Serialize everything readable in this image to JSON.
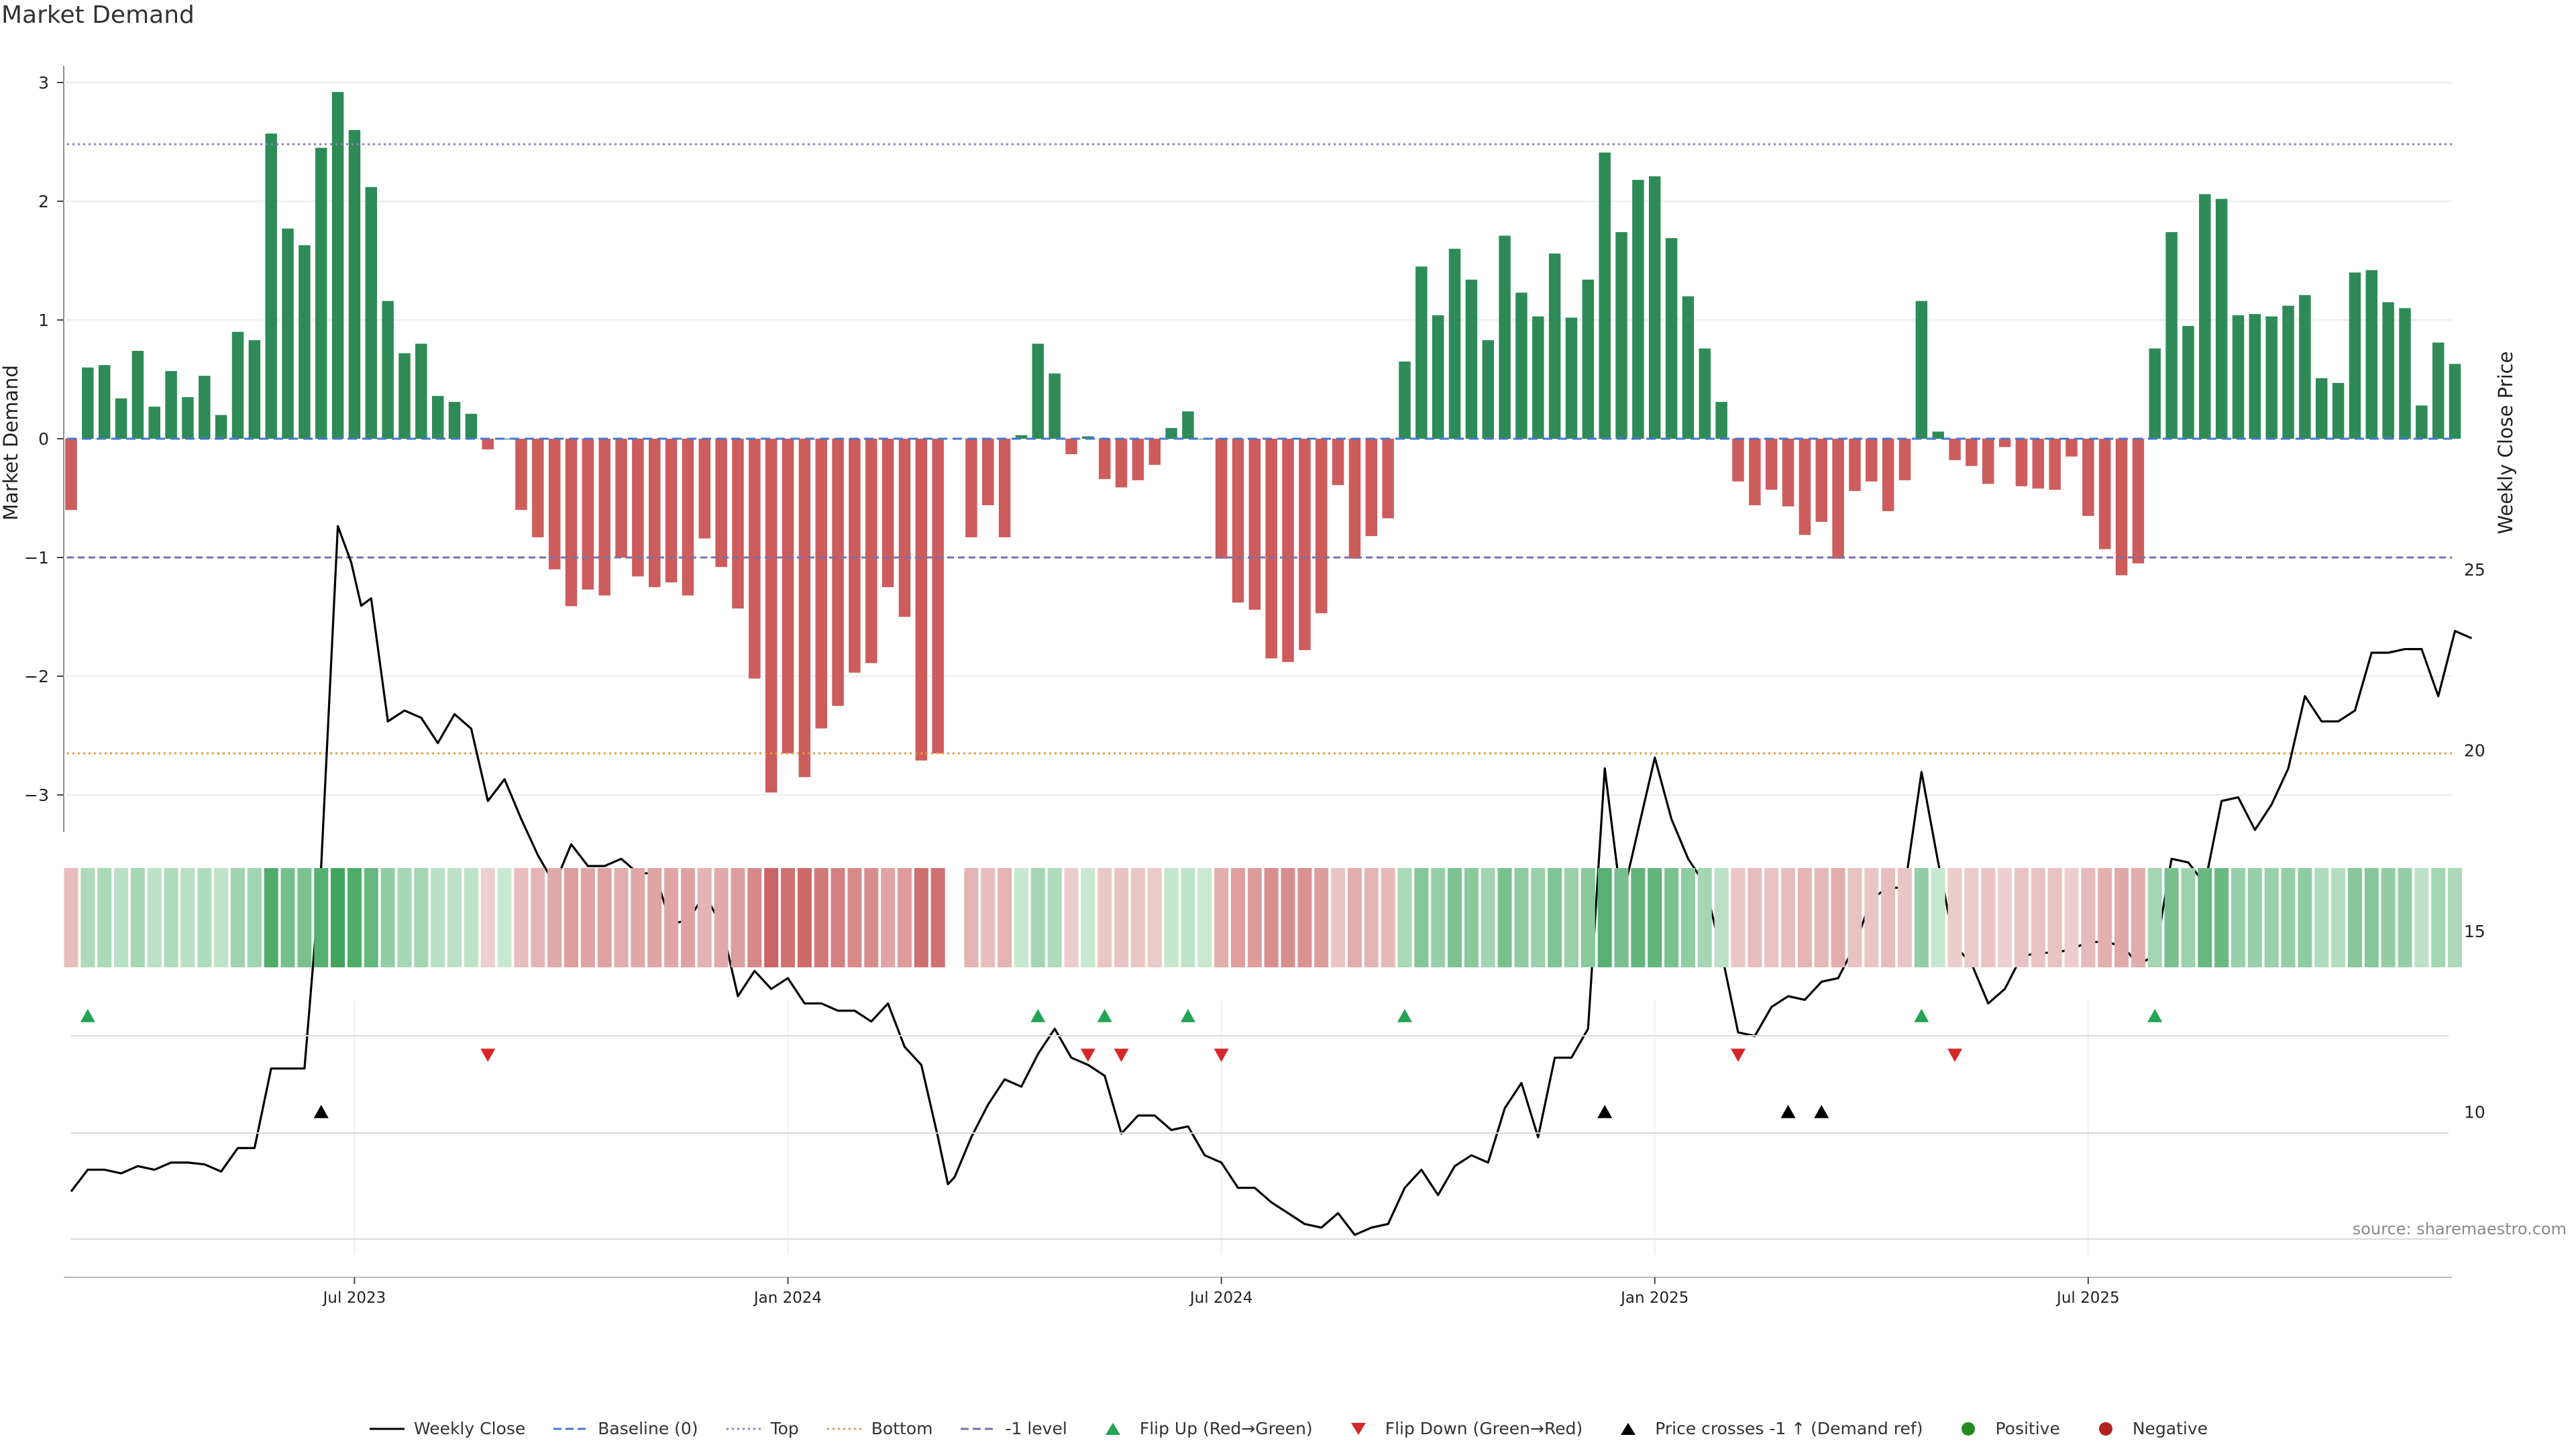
{
  "title": "Market Demand",
  "source": "source: sharemaestro.com",
  "colors": {
    "positive": "#2e8b57",
    "negative": "#cd5c5c",
    "close": "#000000",
    "baseline": "#4477cc",
    "top": "#8a7fb8",
    "bottom": "#e69a3a",
    "level": "#7a6fa8",
    "flip_up": "#22a355",
    "flip_down": "#d62728",
    "cross": "#000000"
  },
  "legend": [
    {
      "label": "Weekly Close",
      "type": "line",
      "color": "#000000"
    },
    {
      "label": "Baseline (0)",
      "type": "dash",
      "color": "#4477cc"
    },
    {
      "label": "Top",
      "type": "dot",
      "color": "#8a7fb8"
    },
    {
      "label": "Bottom",
      "type": "dot",
      "color": "#e69a3a"
    },
    {
      "label": "-1 level",
      "type": "dash",
      "color": "#7a6fa8"
    },
    {
      "label": "Flip Up (Red→Green)",
      "type": "tri-up",
      "color": "#22a355"
    },
    {
      "label": "Flip Down (Green→Red)",
      "type": "tri-down",
      "color": "#d62728"
    },
    {
      "label": "Price crosses -1 ↑ (Demand ref)",
      "type": "tri-up",
      "color": "#000000"
    },
    {
      "label": "Positive",
      "type": "dot-marker",
      "color": "#228b22"
    },
    {
      "label": "Negative",
      "type": "dot-marker",
      "color": "#b22222"
    }
  ],
  "chart_data": {
    "type": "bar",
    "xlabel": "",
    "ylabel": "Market Demand",
    "y2label": "Weekly Close Price",
    "ylim": [
      -3.3,
      3.2
    ],
    "y2lim": [
      6.2,
      27
    ],
    "yticks": [
      -3,
      -2,
      -1,
      0,
      1,
      2,
      3
    ],
    "yticklabels": [
      "−3",
      "−2",
      "−1",
      "0",
      "1",
      "2",
      "3"
    ],
    "y2ticks": [
      10,
      15,
      20,
      25
    ],
    "x_range_weeks": [
      -5,
      138
    ],
    "date_ticks": [
      {
        "label": "Jul 2023",
        "week": 17
      },
      {
        "label": "Jan 2024",
        "week": 43
      },
      {
        "label": "Jul 2024",
        "week": 69
      },
      {
        "label": "Jan 2025",
        "week": 95
      },
      {
        "label": "Jul 2025",
        "week": 121
      }
    ],
    "reference_lines": {
      "top": 2.48,
      "bottom": -2.65,
      "level": -1,
      "baseline": 0
    },
    "demand": [
      -0.6,
      0.6,
      0.62,
      0.34,
      0.74,
      0.27,
      0.57,
      0.35,
      0.53,
      0.2,
      0.9,
      0.83,
      2.57,
      1.77,
      1.63,
      2.45,
      2.92,
      2.6,
      2.12,
      1.16,
      0.72,
      0.8,
      0.36,
      0.31,
      0.21,
      -0.09,
      0,
      -0.6,
      -0.83,
      -1.1,
      -1.41,
      -1.27,
      -1.32,
      -1,
      -1.16,
      -1.25,
      -1.21,
      -1.32,
      -0.84,
      -1.08,
      -1.43,
      -2.02,
      -2.98,
      -2.65,
      -2.85,
      -2.44,
      -2.25,
      -1.97,
      -1.89,
      -1.25,
      -1.5,
      -2.71,
      -2.65,
      null,
      -0.83,
      -0.56,
      -0.83,
      0.03,
      0.8,
      0.55,
      -0.13,
      0.02,
      -0.34,
      -0.41,
      -0.35,
      -0.22,
      0.09,
      0.23,
      0,
      -1.01,
      -1.38,
      -1.44,
      -1.85,
      -1.88,
      -1.78,
      -1.47,
      -0.39,
      -1.01,
      -0.82,
      -0.67,
      0.65,
      1.45,
      1.04,
      1.6,
      1.34,
      0.83,
      1.71,
      1.23,
      1.03,
      1.56,
      1.02,
      1.34,
      2.41,
      1.74,
      2.18,
      2.21,
      1.69,
      1.2,
      0.76,
      0.31,
      -0.36,
      -0.56,
      -0.43,
      -0.57,
      -0.81,
      -0.7,
      -1.01,
      -0.44,
      -0.36,
      -0.61,
      -0.35,
      1.16,
      0.06,
      -0.18,
      -0.23,
      -0.38,
      -0.07,
      -0.4,
      -0.42,
      -0.43,
      -0.15,
      -0.65,
      -0.93,
      -1.15,
      -1.05,
      0.76,
      1.74,
      0.95,
      2.06,
      2.02,
      1.04,
      1.05,
      1.03,
      1.12,
      1.21,
      0.51,
      0.47,
      1.4,
      1.42,
      1.15,
      1.1,
      0.28,
      0.81,
      0.63
    ],
    "close_price_points": [
      [
        0,
        7.8
      ],
      [
        1,
        8.4
      ],
      [
        2,
        8.4
      ],
      [
        3,
        8.3
      ],
      [
        4,
        8.5
      ],
      [
        5,
        8.4
      ],
      [
        6,
        8.6
      ],
      [
        7,
        8.6
      ],
      [
        8,
        8.55
      ],
      [
        9,
        8.35
      ],
      [
        10,
        9.0
      ],
      [
        11,
        9.0
      ],
      [
        12,
        11.2
      ],
      [
        13,
        11.2
      ],
      [
        14,
        11.2
      ],
      [
        15,
        16.8
      ],
      [
        16,
        26.2
      ],
      [
        16.8,
        25.2
      ],
      [
        17.4,
        24.0
      ],
      [
        18,
        24.2
      ],
      [
        19,
        20.8
      ],
      [
        20,
        21.1
      ],
      [
        21,
        20.9
      ],
      [
        22,
        20.2
      ],
      [
        23,
        21.0
      ],
      [
        24,
        20.6
      ],
      [
        25,
        18.6
      ],
      [
        26,
        19.2
      ],
      [
        27,
        18.1
      ],
      [
        28,
        17.1
      ],
      [
        29,
        16.3
      ],
      [
        30,
        17.4
      ],
      [
        31,
        16.8
      ],
      [
        32,
        16.8
      ],
      [
        33,
        17.0
      ],
      [
        34,
        16.6
      ],
      [
        35,
        16.6
      ],
      [
        36,
        15.2
      ],
      [
        37,
        15.3
      ],
      [
        38,
        16.0
      ],
      [
        39,
        15.2
      ],
      [
        40,
        13.2
      ],
      [
        41,
        13.9
      ],
      [
        42,
        13.4
      ],
      [
        43,
        13.7
      ],
      [
        44,
        13.0
      ],
      [
        45,
        13.0
      ],
      [
        46,
        12.8
      ],
      [
        47,
        12.8
      ],
      [
        48,
        12.5
      ],
      [
        49,
        13.0
      ],
      [
        50,
        11.8
      ],
      [
        51,
        11.3
      ],
      [
        52,
        9.3
      ],
      [
        52.6,
        8.0
      ],
      [
        53,
        8.2
      ],
      [
        54,
        9.3
      ],
      [
        55,
        10.2
      ],
      [
        56,
        10.9
      ],
      [
        57,
        10.7
      ],
      [
        58,
        11.6
      ],
      [
        59,
        12.3
      ],
      [
        60,
        11.5
      ],
      [
        61,
        11.3
      ],
      [
        62,
        11.0
      ],
      [
        63,
        9.4
      ],
      [
        64,
        9.9
      ],
      [
        65,
        9.9
      ],
      [
        66,
        9.5
      ],
      [
        67,
        9.6
      ],
      [
        68,
        8.8
      ],
      [
        69,
        8.6
      ],
      [
        70,
        7.9
      ],
      [
        71,
        7.9
      ],
      [
        72,
        7.5
      ],
      [
        73,
        7.2
      ],
      [
        74,
        6.9
      ],
      [
        75,
        6.8
      ],
      [
        76,
        7.2
      ],
      [
        77,
        6.6
      ],
      [
        78,
        6.8
      ],
      [
        79,
        6.9
      ],
      [
        80,
        7.9
      ],
      [
        81,
        8.4
      ],
      [
        82,
        7.7
      ],
      [
        83,
        8.5
      ],
      [
        84,
        8.8
      ],
      [
        85,
        8.6
      ],
      [
        86,
        10.1
      ],
      [
        87,
        10.8
      ],
      [
        88,
        9.3
      ],
      [
        89,
        11.5
      ],
      [
        90,
        11.5
      ],
      [
        91,
        12.3
      ],
      [
        92,
        19.5
      ],
      [
        93,
        15.8
      ],
      [
        94,
        17.8
      ],
      [
        95,
        19.8
      ],
      [
        96,
        18.1
      ],
      [
        97,
        17.0
      ],
      [
        98,
        16.3
      ],
      [
        99,
        14.4
      ],
      [
        100,
        12.2
      ],
      [
        101,
        12.1
      ],
      [
        102,
        12.9
      ],
      [
        103,
        13.2
      ],
      [
        104,
        13.1
      ],
      [
        105,
        13.6
      ],
      [
        106,
        13.7
      ],
      [
        107,
        14.6
      ],
      [
        108,
        15.9
      ],
      [
        109,
        16.2
      ],
      [
        110,
        16.2
      ],
      [
        111,
        19.4
      ],
      [
        112,
        16.9
      ],
      [
        113,
        14.6
      ],
      [
        114,
        14.1
      ],
      [
        115,
        13.0
      ],
      [
        116,
        13.4
      ],
      [
        117,
        14.3
      ],
      [
        118,
        14.4
      ],
      [
        119,
        14.4
      ],
      [
        120,
        14.5
      ],
      [
        121,
        14.7
      ],
      [
        122,
        14.7
      ],
      [
        123,
        14.6
      ],
      [
        124,
        14.1
      ],
      [
        125,
        14.3
      ],
      [
        126,
        17.0
      ],
      [
        127,
        16.9
      ],
      [
        128,
        16.3
      ],
      [
        129,
        18.6
      ],
      [
        130,
        18.7
      ],
      [
        131,
        17.8
      ],
      [
        132,
        18.5
      ],
      [
        133,
        19.5
      ],
      [
        134,
        21.5
      ],
      [
        135,
        20.8
      ],
      [
        136,
        20.8
      ],
      [
        137,
        21.1
      ],
      [
        138,
        22.7
      ],
      [
        139,
        22.7
      ],
      [
        140,
        22.8
      ],
      [
        141,
        22.8
      ],
      [
        142,
        21.5
      ],
      [
        143,
        23.3
      ],
      [
        144,
        23.1
      ]
    ],
    "flip_up_weeks": [
      1,
      58,
      62,
      67,
      80,
      111,
      125
    ],
    "flip_down_weeks": [
      25,
      61,
      63,
      69,
      100,
      113
    ],
    "price_cross_weeks": [
      15,
      92,
      103,
      105
    ]
  }
}
